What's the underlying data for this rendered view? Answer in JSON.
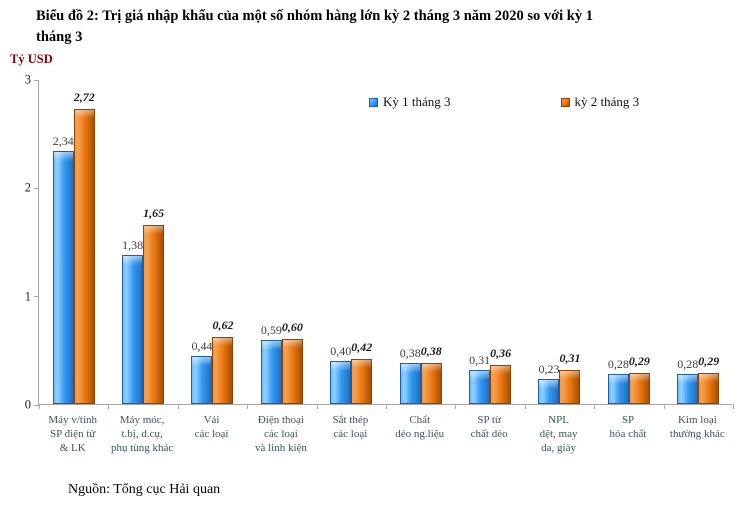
{
  "title": "Biểu đồ 2: Trị giá nhập khẩu của một số nhóm hàng lớn kỳ 2 tháng 3 năm 2020 so với kỳ 1\ntháng 3",
  "unit_label": "Tỷ USD",
  "source": "Nguồn: Tổng cục Hải quan",
  "chart_data": {
    "type": "bar",
    "title": "Biểu đồ 2: Trị giá nhập khẩu của một số nhóm hàng lớn kỳ 2 tháng 3 năm 2020 so với kỳ 1 tháng 3",
    "ylabel": "Tỷ USD",
    "xlabel": "",
    "ylim": [
      0,
      3
    ],
    "yticks": [
      0,
      1,
      2,
      3
    ],
    "grid": false,
    "legend_position": "top",
    "categories": [
      "Máy v/tính\nSP điện tử\n& LK",
      "Máy móc,\nt.bị, d.cụ,\nphụ tùng khác",
      "Vải\ncác loại",
      "Điện thoại\ncác loại\nvà linh kiện",
      "Sắt thép\ncác loại",
      "Chất\ndẻo ng.liệu",
      "SP từ\nchất dẻo",
      "NPL\ndệt, may\nda, giày",
      "SP\nhóa chất",
      "Kim loại\nthường khác"
    ],
    "series": [
      {
        "name": "Kỳ 1 tháng 3",
        "color": "#3399f3",
        "values": [
          2.34,
          1.38,
          0.44,
          0.59,
          0.4,
          0.38,
          0.31,
          0.23,
          0.28,
          0.28
        ],
        "labels": [
          "2,34",
          "1,38",
          "0,44",
          "0,59",
          "0,40",
          "0,38",
          "0,31",
          "0,23",
          "0,28",
          "0,28"
        ]
      },
      {
        "name": "kỳ 2 tháng 3",
        "color": "#e9750f",
        "values": [
          2.72,
          1.65,
          0.62,
          0.6,
          0.42,
          0.38,
          0.36,
          0.31,
          0.29,
          0.29
        ],
        "labels": [
          "2,72",
          "1,65",
          "0,62",
          "0,60",
          "0,42",
          "0,38",
          "0,36",
          "0,31",
          "0,29",
          "0,29"
        ]
      }
    ]
  }
}
